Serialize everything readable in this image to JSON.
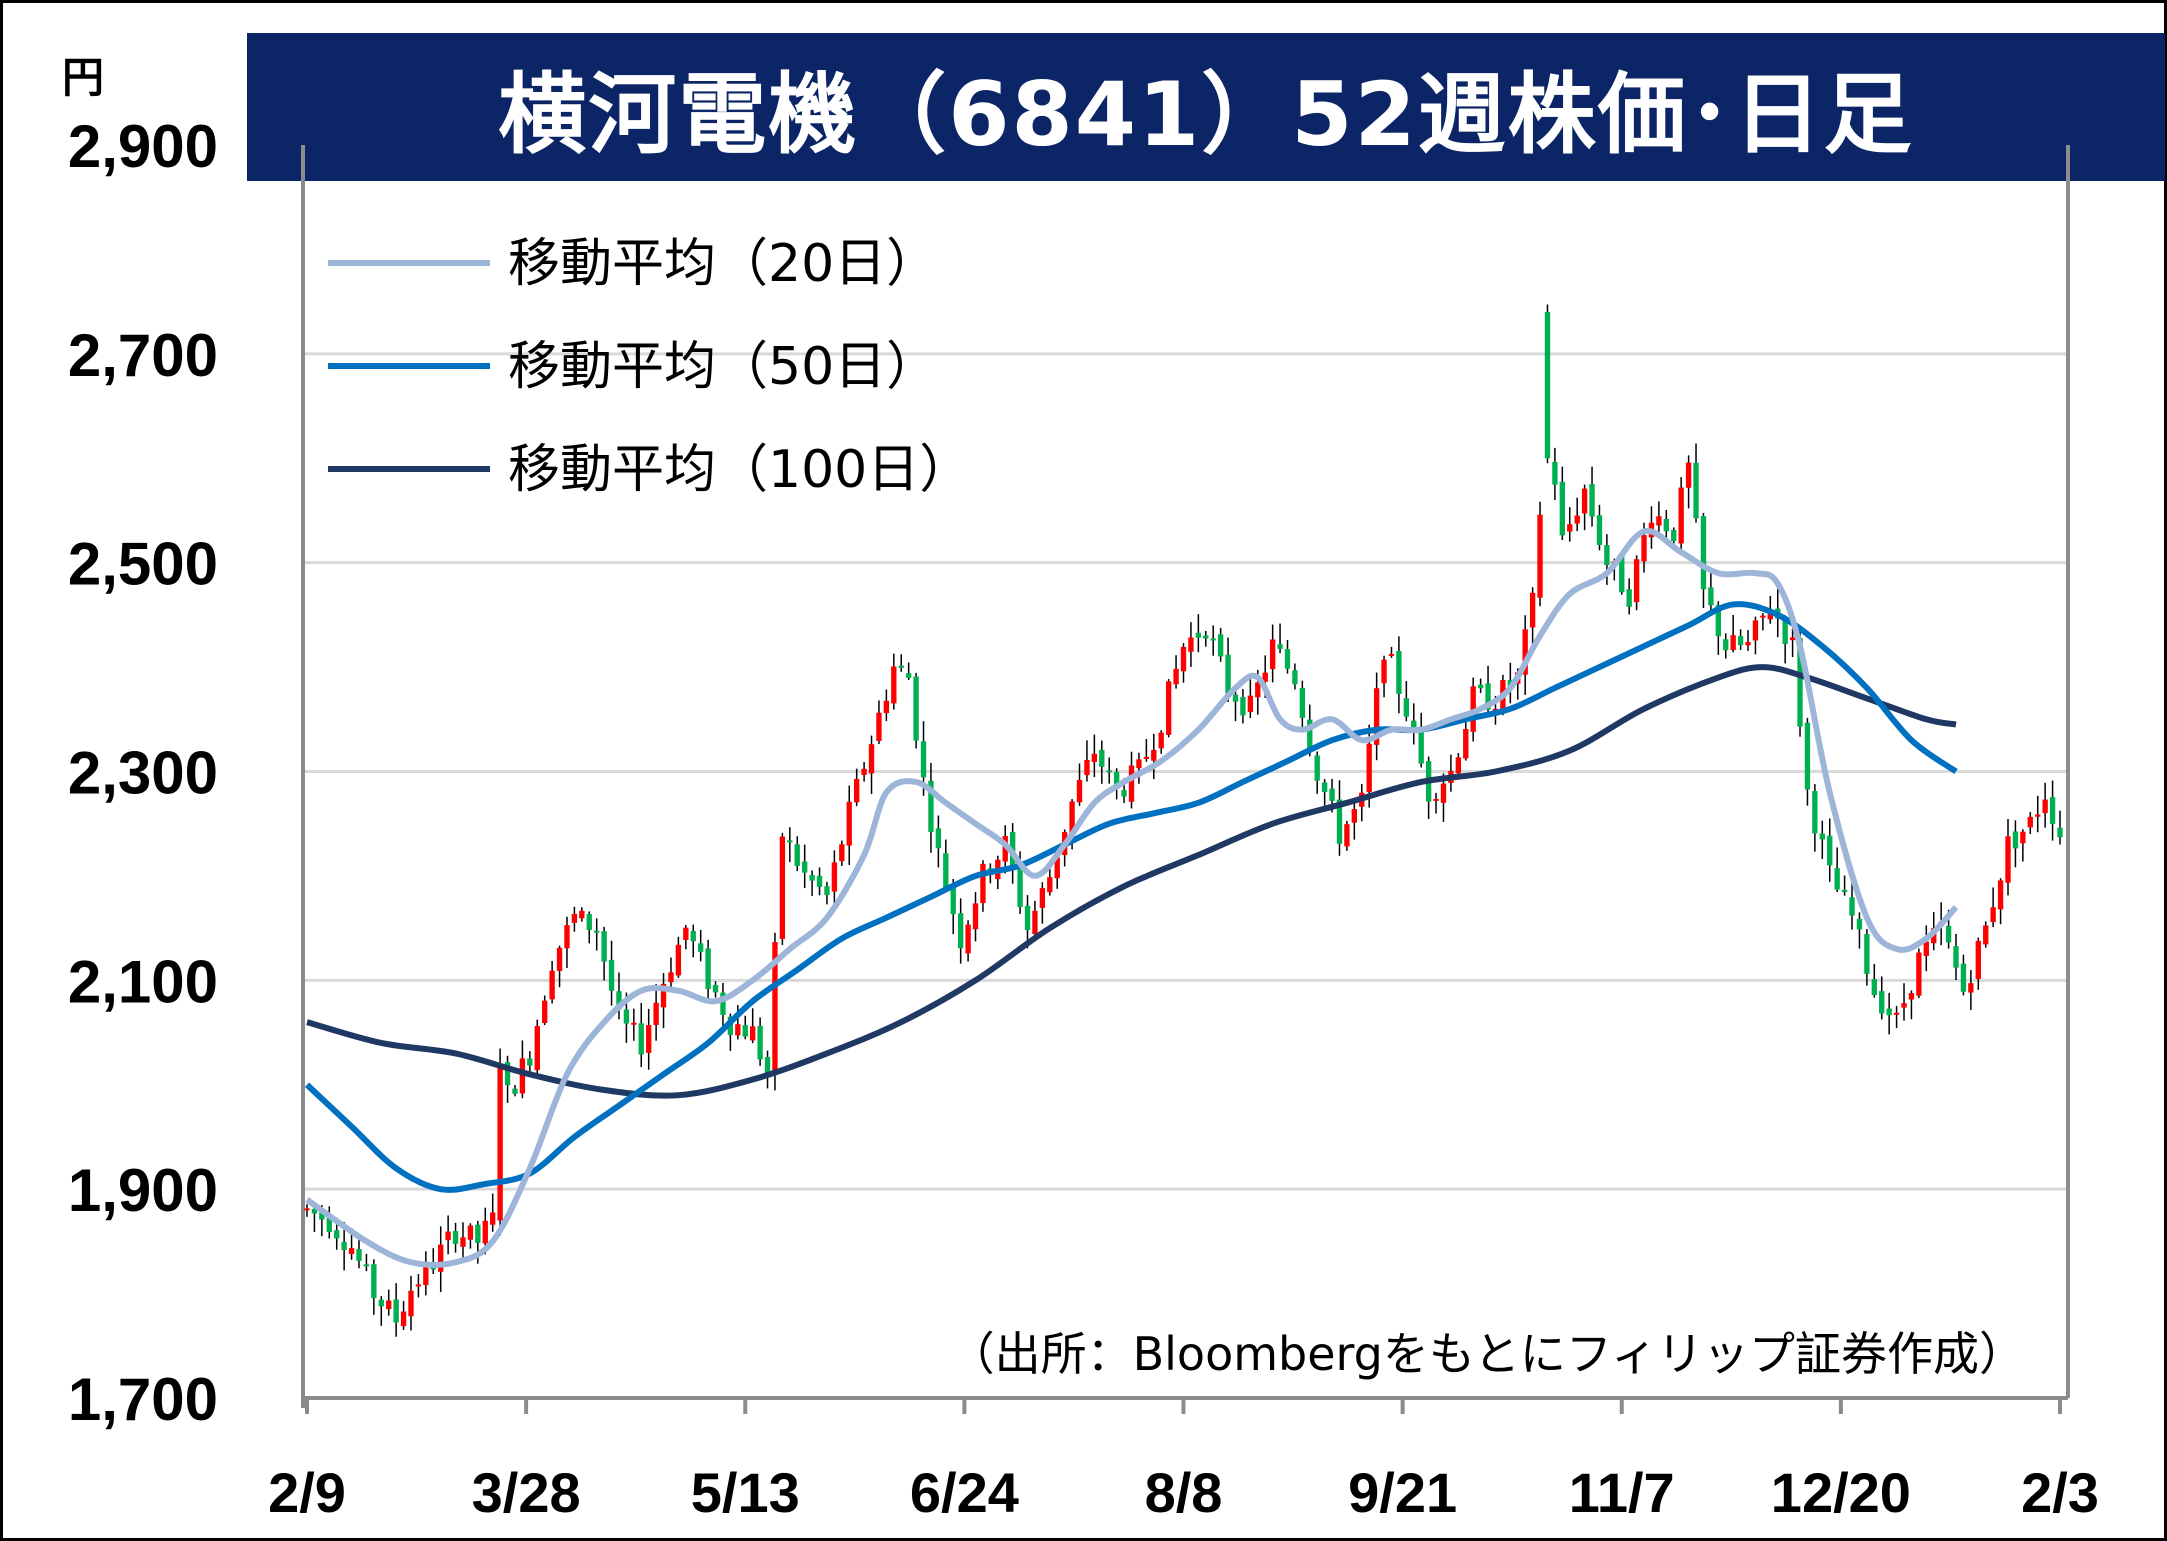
{
  "title": "横河電機（6841）52週株価･日足",
  "unit": "円",
  "source": "（出所：Bloombergをもとにフィリップ証券作成）",
  "colors": {
    "up": "#ff0000",
    "down": "#00b050",
    "ma20": "#9db5d8",
    "ma50": "#0070c0",
    "ma100": "#1f3864",
    "title_bg": "#0c2566",
    "grid": "#d9d9d9"
  },
  "legend": [
    {
      "label": "移動平均（20日）",
      "color": "#9db5d8"
    },
    {
      "label": "移動平均（50日）",
      "color": "#0070c0"
    },
    {
      "label": "移動平均（100日）",
      "color": "#1f3864"
    }
  ],
  "chart_data": {
    "type": "candlestick",
    "title": "横河電機（6841）52週株価･日足",
    "ylabel": "円",
    "ylim": [
      1700,
      2900
    ],
    "yticks": [
      1700,
      1900,
      2100,
      2300,
      2500,
      2700,
      2900
    ],
    "ytick_labels": [
      "1,700",
      "1,900",
      "2,100",
      "2,300",
      "2,500",
      "2,700",
      "2,900"
    ],
    "xtick_labels": [
      "2/9",
      "3/28",
      "5/13",
      "6/24",
      "8/8",
      "9/21",
      "11/7",
      "12/20",
      "2/3"
    ],
    "grid": true,
    "legend_position": "top-left",
    "anchors": [
      {
        "x": 0,
        "v": 1880
      },
      {
        "x": 3,
        "v": 1870
      },
      {
        "x": 6,
        "v": 1845
      },
      {
        "x": 9,
        "v": 1800
      },
      {
        "x": 12,
        "v": 1775
      },
      {
        "x": 14,
        "v": 1805
      },
      {
        "x": 17,
        "v": 1830
      },
      {
        "x": 20,
        "v": 1860
      },
      {
        "x": 23,
        "v": 1850
      },
      {
        "x": 25,
        "v": 1870
      },
      {
        "x": 27,
        "v": 1990
      },
      {
        "x": 30,
        "v": 2030
      },
      {
        "x": 33,
        "v": 2120
      },
      {
        "x": 36,
        "v": 2160
      },
      {
        "x": 39,
        "v": 2150
      },
      {
        "x": 42,
        "v": 2060
      },
      {
        "x": 45,
        "v": 2040
      },
      {
        "x": 48,
        "v": 2100
      },
      {
        "x": 51,
        "v": 2150
      },
      {
        "x": 54,
        "v": 2100
      },
      {
        "x": 57,
        "v": 2060
      },
      {
        "x": 60,
        "v": 2050
      },
      {
        "x": 62,
        "v": 2010
      },
      {
        "x": 64,
        "v": 2240
      },
      {
        "x": 67,
        "v": 2200
      },
      {
        "x": 70,
        "v": 2180
      },
      {
        "x": 73,
        "v": 2260
      },
      {
        "x": 76,
        "v": 2330
      },
      {
        "x": 79,
        "v": 2400
      },
      {
        "x": 81,
        "v": 2390
      },
      {
        "x": 83,
        "v": 2290
      },
      {
        "x": 85,
        "v": 2220
      },
      {
        "x": 88,
        "v": 2140
      },
      {
        "x": 91,
        "v": 2200
      },
      {
        "x": 94,
        "v": 2230
      },
      {
        "x": 97,
        "v": 2150
      },
      {
        "x": 100,
        "v": 2200
      },
      {
        "x": 103,
        "v": 2270
      },
      {
        "x": 106,
        "v": 2320
      },
      {
        "x": 109,
        "v": 2280
      },
      {
        "x": 112,
        "v": 2300
      },
      {
        "x": 115,
        "v": 2350
      },
      {
        "x": 118,
        "v": 2420
      },
      {
        "x": 121,
        "v": 2440
      },
      {
        "x": 124,
        "v": 2380
      },
      {
        "x": 127,
        "v": 2360
      },
      {
        "x": 130,
        "v": 2420
      },
      {
        "x": 133,
        "v": 2390
      },
      {
        "x": 136,
        "v": 2300
      },
      {
        "x": 139,
        "v": 2240
      },
      {
        "x": 142,
        "v": 2270
      },
      {
        "x": 145,
        "v": 2420
      },
      {
        "x": 148,
        "v": 2360
      },
      {
        "x": 151,
        "v": 2280
      },
      {
        "x": 154,
        "v": 2300
      },
      {
        "x": 157,
        "v": 2370
      },
      {
        "x": 160,
        "v": 2370
      },
      {
        "x": 163,
        "v": 2390
      },
      {
        "x": 165,
        "v": 2460
      },
      {
        "x": 167,
        "v": 2640
      },
      {
        "x": 169,
        "v": 2520
      },
      {
        "x": 172,
        "v": 2570
      },
      {
        "x": 175,
        "v": 2500
      },
      {
        "x": 178,
        "v": 2470
      },
      {
        "x": 181,
        "v": 2550
      },
      {
        "x": 184,
        "v": 2530
      },
      {
        "x": 186,
        "v": 2590
      },
      {
        "x": 188,
        "v": 2470
      },
      {
        "x": 191,
        "v": 2420
      },
      {
        "x": 194,
        "v": 2420
      },
      {
        "x": 197,
        "v": 2460
      },
      {
        "x": 200,
        "v": 2420
      },
      {
        "x": 202,
        "v": 2280
      },
      {
        "x": 205,
        "v": 2200
      },
      {
        "x": 208,
        "v": 2160
      },
      {
        "x": 211,
        "v": 2090
      },
      {
        "x": 214,
        "v": 2060
      },
      {
        "x": 217,
        "v": 2120
      },
      {
        "x": 220,
        "v": 2150
      },
      {
        "x": 223,
        "v": 2090
      },
      {
        "x": 226,
        "v": 2150
      },
      {
        "x": 229,
        "v": 2230
      },
      {
        "x": 232,
        "v": 2250
      },
      {
        "x": 234,
        "v": 2280
      },
      {
        "x": 236,
        "v": 2240
      }
    ],
    "ma20": [
      [
        0,
        1890
      ],
      [
        8,
        1850
      ],
      [
        14,
        1830
      ],
      [
        20,
        1830
      ],
      [
        25,
        1850
      ],
      [
        30,
        1920
      ],
      [
        35,
        2010
      ],
      [
        40,
        2060
      ],
      [
        45,
        2090
      ],
      [
        50,
        2090
      ],
      [
        55,
        2080
      ],
      [
        60,
        2100
      ],
      [
        65,
        2130
      ],
      [
        70,
        2160
      ],
      [
        75,
        2220
      ],
      [
        78,
        2280
      ],
      [
        82,
        2290
      ],
      [
        86,
        2270
      ],
      [
        90,
        2250
      ],
      [
        94,
        2230
      ],
      [
        98,
        2200
      ],
      [
        102,
        2230
      ],
      [
        106,
        2270
      ],
      [
        110,
        2290
      ],
      [
        115,
        2310
      ],
      [
        120,
        2340
      ],
      [
        125,
        2380
      ],
      [
        128,
        2390
      ],
      [
        131,
        2350
      ],
      [
        134,
        2340
      ],
      [
        138,
        2350
      ],
      [
        142,
        2330
      ],
      [
        146,
        2340
      ],
      [
        150,
        2340
      ],
      [
        154,
        2350
      ],
      [
        158,
        2360
      ],
      [
        162,
        2380
      ],
      [
        166,
        2430
      ],
      [
        170,
        2470
      ],
      [
        175,
        2490
      ],
      [
        180,
        2530
      ],
      [
        185,
        2510
      ],
      [
        190,
        2490
      ],
      [
        195,
        2490
      ],
      [
        198,
        2480
      ],
      [
        201,
        2420
      ],
      [
        205,
        2280
      ],
      [
        210,
        2160
      ],
      [
        214,
        2130
      ],
      [
        218,
        2140
      ],
      [
        222,
        2170
      ]
    ],
    "ma50": [
      [
        0,
        2000
      ],
      [
        6,
        1960
      ],
      [
        12,
        1920
      ],
      [
        18,
        1900
      ],
      [
        24,
        1905
      ],
      [
        30,
        1915
      ],
      [
        36,
        1950
      ],
      [
        42,
        1980
      ],
      [
        48,
        2010
      ],
      [
        54,
        2040
      ],
      [
        60,
        2080
      ],
      [
        66,
        2110
      ],
      [
        72,
        2140
      ],
      [
        78,
        2160
      ],
      [
        84,
        2180
      ],
      [
        90,
        2200
      ],
      [
        96,
        2210
      ],
      [
        102,
        2230
      ],
      [
        108,
        2250
      ],
      [
        114,
        2260
      ],
      [
        120,
        2270
      ],
      [
        126,
        2290
      ],
      [
        132,
        2310
      ],
      [
        138,
        2330
      ],
      [
        144,
        2340
      ],
      [
        150,
        2340
      ],
      [
        156,
        2350
      ],
      [
        162,
        2360
      ],
      [
        168,
        2380
      ],
      [
        174,
        2400
      ],
      [
        180,
        2420
      ],
      [
        186,
        2440
      ],
      [
        192,
        2460
      ],
      [
        198,
        2450
      ],
      [
        204,
        2420
      ],
      [
        210,
        2380
      ],
      [
        216,
        2330
      ],
      [
        222,
        2300
      ]
    ],
    "ma100": [
      [
        0,
        2060
      ],
      [
        10,
        2040
      ],
      [
        20,
        2030
      ],
      [
        30,
        2010
      ],
      [
        40,
        1995
      ],
      [
        50,
        1990
      ],
      [
        60,
        2005
      ],
      [
        70,
        2030
      ],
      [
        80,
        2060
      ],
      [
        90,
        2100
      ],
      [
        100,
        2150
      ],
      [
        110,
        2190
      ],
      [
        120,
        2220
      ],
      [
        130,
        2250
      ],
      [
        140,
        2270
      ],
      [
        150,
        2290
      ],
      [
        160,
        2300
      ],
      [
        170,
        2320
      ],
      [
        180,
        2360
      ],
      [
        190,
        2390
      ],
      [
        196,
        2400
      ],
      [
        202,
        2390
      ],
      [
        210,
        2370
      ],
      [
        218,
        2350
      ],
      [
        222,
        2345
      ]
    ]
  }
}
